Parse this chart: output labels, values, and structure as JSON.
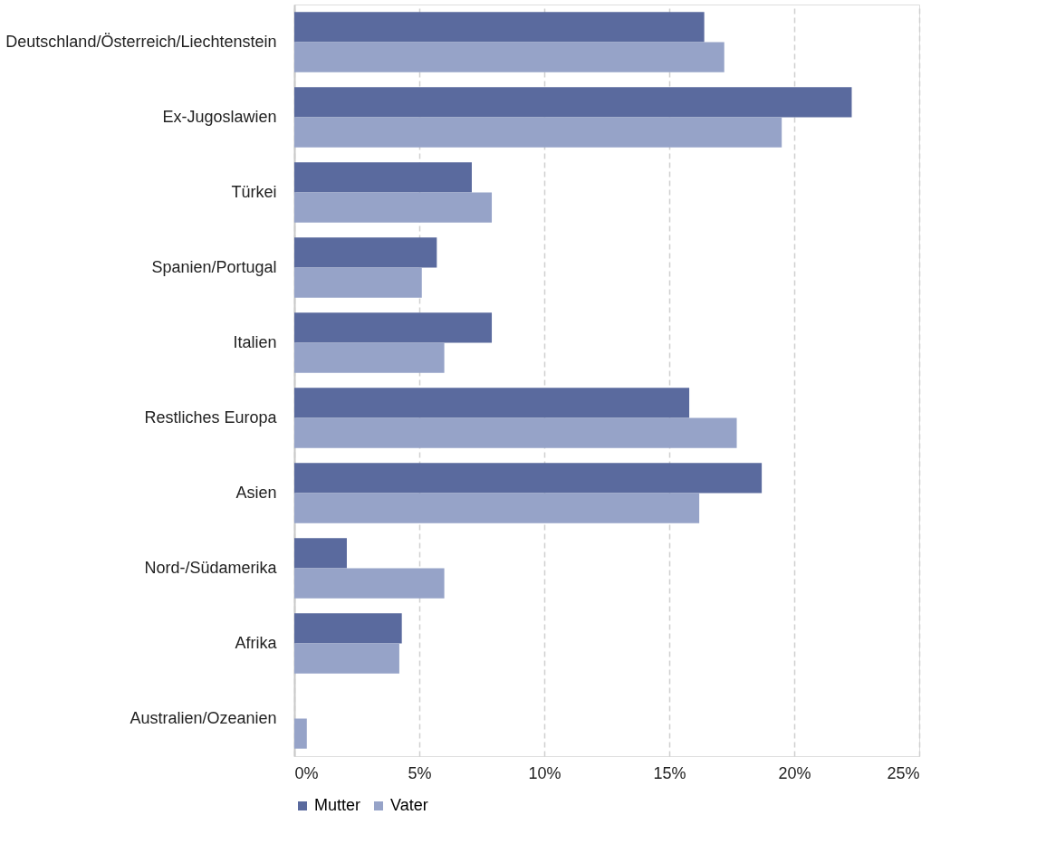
{
  "chart_data": {
    "type": "bar",
    "orientation": "horizontal",
    "categories": [
      "Deutschland/Österreich/Liechtenstein",
      "Ex-Jugoslawien",
      "Türkei",
      "Spanien/Portugal",
      "Italien",
      "Restliches Europa",
      "Asien",
      "Nord-/Südamerika",
      "Afrika",
      "Australien/Ozeanien"
    ],
    "series": [
      {
        "name": "Mutter",
        "color": "#5a6a9e",
        "values": [
          16.4,
          22.3,
          7.1,
          5.7,
          7.9,
          15.8,
          18.7,
          2.1,
          4.3,
          0
        ]
      },
      {
        "name": "Vater",
        "color": "#96a3c8",
        "values": [
          17.2,
          19.5,
          7.9,
          5.1,
          6.0,
          17.7,
          16.2,
          6.0,
          4.2,
          0.5
        ]
      }
    ],
    "xlim": [
      0,
      25
    ],
    "xticks": [
      {
        "value": 0,
        "label": "0%"
      },
      {
        "value": 5,
        "label": "5%"
      },
      {
        "value": 10,
        "label": "10%"
      },
      {
        "value": 15,
        "label": "15%"
      },
      {
        "value": 20,
        "label": "20%"
      },
      {
        "value": 25,
        "label": "25%"
      }
    ],
    "grid": "x",
    "line_style": "dashed",
    "legend": "bottom"
  }
}
